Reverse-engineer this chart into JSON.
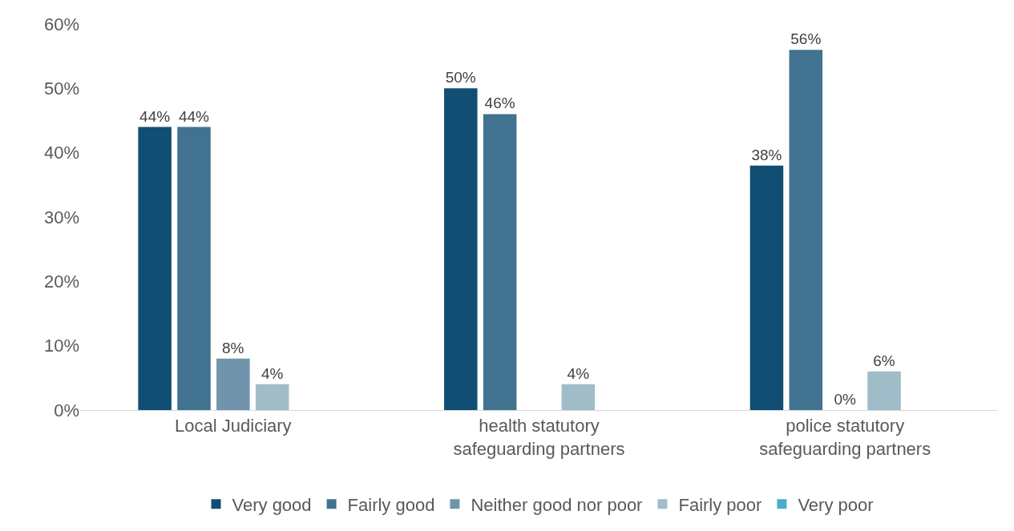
{
  "chart_data": {
    "type": "bar",
    "categories": [
      "Local Judiciary",
      "health statutory\nsafeguarding partners",
      "police statutory\nsafeguarding partners"
    ],
    "series": [
      {
        "name": "Very good",
        "color": "#114e73",
        "values": [
          44,
          50,
          38
        ],
        "value_labels": [
          "44%",
          "50%",
          "38%"
        ]
      },
      {
        "name": "Fairly good",
        "color": "#417390",
        "values": [
          44,
          46,
          56
        ],
        "value_labels": [
          "44%",
          "46%",
          "56%"
        ]
      },
      {
        "name": "Neither good nor poor",
        "color": "#7094ab",
        "values": [
          8,
          null,
          0
        ],
        "value_labels": [
          "8%",
          null,
          "0%"
        ]
      },
      {
        "name": "Fairly poor",
        "color": "#a0bcc8",
        "values": [
          4,
          4,
          6
        ],
        "value_labels": [
          "4%",
          "4%",
          "6%"
        ]
      },
      {
        "name": "Very poor",
        "color": "#4aaec8",
        "values": [
          null,
          null,
          null
        ],
        "value_labels": [
          null,
          null,
          null
        ]
      }
    ],
    "ylim": [
      0,
      60
    ],
    "yticks": [
      {
        "value": 0,
        "label": "0%"
      },
      {
        "value": 10,
        "label": "10%"
      },
      {
        "value": 20,
        "label": "20%"
      },
      {
        "value": 30,
        "label": "30%"
      },
      {
        "value": 40,
        "label": "40%"
      },
      {
        "value": 50,
        "label": "50%"
      },
      {
        "value": 60,
        "label": "60%"
      }
    ],
    "legend": "bottom"
  }
}
